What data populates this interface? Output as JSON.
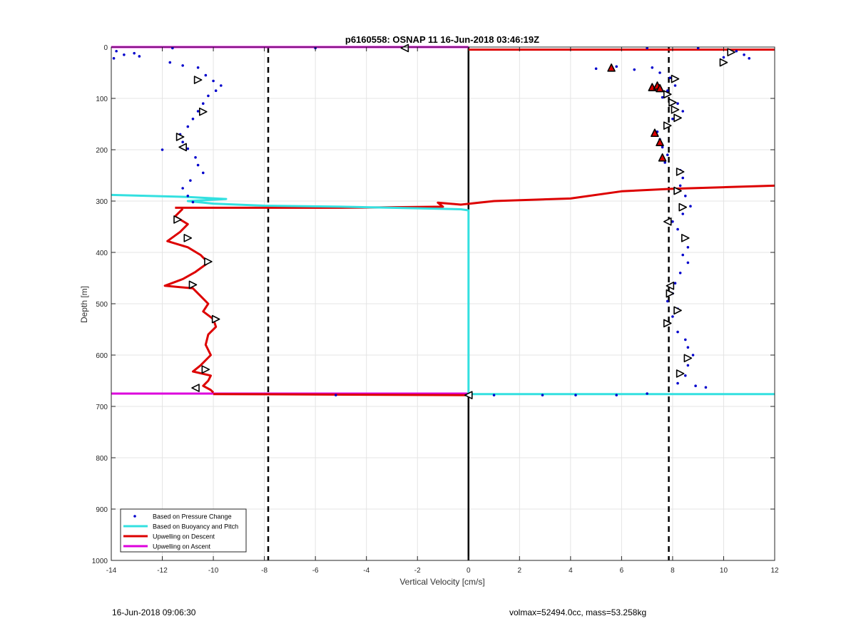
{
  "chart_data": {
    "type": "scatter",
    "title": "p6160558: OSNAP 11 16-Jun-2018 03:46:19Z",
    "xlabel": "Vertical Velocity [cm/s]",
    "ylabel": "Depth [m]",
    "xlim": [
      -14,
      12
    ],
    "ylim": [
      0,
      1000
    ],
    "y_reversed": true,
    "grid": true,
    "xticks": [
      "-14",
      "-12",
      "-10",
      "-8",
      "-6",
      "-4",
      "-2",
      "0",
      "2",
      "4",
      "6",
      "8",
      "10",
      "12"
    ],
    "yticks": [
      "0",
      "100",
      "200",
      "300",
      "400",
      "500",
      "600",
      "700",
      "800",
      "900",
      "1000"
    ],
    "legend_position": "bottom-left",
    "legend": [
      {
        "label": "Based on Pressure Change",
        "color": "#0000cc",
        "style": "marker"
      },
      {
        "label": "Based on Buoyancy and Pitch",
        "color": "#33e0e0",
        "style": "line"
      },
      {
        "label": "Upwelling on Descent",
        "color": "#dd0000",
        "style": "line"
      },
      {
        "label": "Upwelling on Ascent",
        "color": "#dd00dd",
        "style": "line"
      }
    ],
    "reference_lines": {
      "dashed_x": [
        -7.85,
        7.85
      ],
      "solid_x": [
        0
      ],
      "color": "#000000"
    },
    "series": [
      {
        "name": "Upwelling on Ascent",
        "kind": "line",
        "color": "#dd00dd",
        "points": [
          [
            -14,
            0
          ],
          [
            0,
            0
          ]
        ]
      },
      {
        "name": "Upwelling on Ascent",
        "kind": "line",
        "color": "#dd00dd",
        "points": [
          [
            -14,
            675
          ],
          [
            0,
            675
          ]
        ]
      },
      {
        "name": "Upwelling on Descent",
        "kind": "line",
        "color": "#dd0000",
        "points": [
          [
            0,
            5
          ],
          [
            12,
            5
          ]
        ]
      },
      {
        "name": "Upwelling on Descent",
        "kind": "line",
        "color": "#dd0000",
        "points": [
          [
            -11.5,
            313
          ],
          [
            -5,
            313
          ],
          [
            -1,
            311
          ],
          [
            -1.2,
            303
          ],
          [
            -0.3,
            307
          ],
          [
            1,
            300
          ],
          [
            4,
            295
          ],
          [
            6,
            281
          ],
          [
            8,
            276
          ],
          [
            10,
            273
          ],
          [
            12,
            270
          ]
        ]
      },
      {
        "name": "Upwelling on Descent",
        "kind": "line",
        "color": "#dd0000",
        "points": [
          [
            -11.2,
            315
          ],
          [
            -11.5,
            330
          ],
          [
            -11,
            345
          ],
          [
            -11.3,
            360
          ],
          [
            -11.8,
            378
          ],
          [
            -11,
            390
          ],
          [
            -10.5,
            405
          ],
          [
            -10.2,
            420
          ],
          [
            -10.7,
            438
          ],
          [
            -11.2,
            452
          ],
          [
            -11.9,
            465
          ],
          [
            -10.8,
            470
          ],
          [
            -10.5,
            485
          ],
          [
            -10.2,
            500
          ],
          [
            -10.4,
            515
          ],
          [
            -10,
            530
          ],
          [
            -9.9,
            545
          ],
          [
            -10.2,
            560
          ],
          [
            -10.3,
            580
          ],
          [
            -10.1,
            600
          ],
          [
            -10.5,
            620
          ],
          [
            -10.8,
            632
          ],
          [
            -10.1,
            640
          ],
          [
            -10.2,
            650
          ],
          [
            -10.4,
            660
          ],
          [
            -10.1,
            668
          ],
          [
            -10,
            673
          ]
        ]
      },
      {
        "name": "Upwelling on Descent",
        "kind": "line",
        "color": "#dd0000",
        "points": [
          [
            -10,
            676
          ],
          [
            0,
            678
          ]
        ]
      },
      {
        "name": "Based on Buoyancy and Pitch",
        "kind": "line",
        "color": "#33e0e0",
        "points": [
          [
            -14,
            288
          ],
          [
            -11,
            292
          ],
          [
            -9.5,
            296
          ],
          [
            -11,
            300
          ],
          [
            -10,
            305
          ],
          [
            -8,
            309
          ],
          [
            -5,
            311
          ],
          [
            -2,
            314
          ],
          [
            -0.3,
            316
          ],
          [
            0,
            318
          ],
          [
            0,
            400
          ],
          [
            0,
            500
          ],
          [
            0,
            600
          ],
          [
            0,
            676
          ],
          [
            6,
            676
          ],
          [
            12,
            676
          ]
        ]
      },
      {
        "name": "Based on Pressure Change",
        "kind": "scatter",
        "color": "#0000cc",
        "points": [
          [
            -13.8,
            8
          ],
          [
            -13.5,
            15
          ],
          [
            -13.9,
            22
          ],
          [
            -13.1,
            12
          ],
          [
            -12.9,
            18
          ],
          [
            -11.7,
            30
          ],
          [
            -11.2,
            36
          ],
          [
            -10.6,
            40
          ],
          [
            -10.3,
            55
          ],
          [
            -10.0,
            66
          ],
          [
            -9.7,
            75
          ],
          [
            -9.9,
            85
          ],
          [
            -10.2,
            95
          ],
          [
            -10.4,
            110
          ],
          [
            -10.6,
            125
          ],
          [
            -10.8,
            140
          ],
          [
            -11.0,
            155
          ],
          [
            -11.3,
            170
          ],
          [
            -11.2,
            185
          ],
          [
            -11.0,
            198
          ],
          [
            -12.0,
            200
          ],
          [
            -10.7,
            215
          ],
          [
            -10.6,
            230
          ],
          [
            -10.4,
            245
          ],
          [
            -10.9,
            260
          ],
          [
            -11.2,
            275
          ],
          [
            -11.0,
            290
          ],
          [
            -10.8,
            302
          ],
          [
            -6.0,
            2
          ],
          [
            -11.6,
            2
          ],
          [
            -5.2,
            678
          ],
          [
            1.0,
            678
          ],
          [
            2.9,
            678
          ],
          [
            4.2,
            678
          ],
          [
            5.8,
            678
          ],
          [
            7.0,
            675
          ],
          [
            7.0,
            2
          ],
          [
            9.0,
            2
          ],
          [
            10.5,
            8
          ],
          [
            10.8,
            15
          ],
          [
            11.0,
            22
          ],
          [
            10.0,
            20
          ],
          [
            5.0,
            42
          ],
          [
            5.8,
            38
          ],
          [
            6.5,
            44
          ],
          [
            7.2,
            40
          ],
          [
            7.5,
            50
          ],
          [
            7.9,
            60
          ],
          [
            8.1,
            75
          ],
          [
            7.8,
            85
          ],
          [
            7.6,
            98
          ],
          [
            8.2,
            110
          ],
          [
            8.4,
            125
          ],
          [
            8.0,
            140
          ],
          [
            7.7,
            150
          ],
          [
            7.4,
            165
          ],
          [
            7.5,
            180
          ],
          [
            7.6,
            195
          ],
          [
            7.8,
            210
          ],
          [
            7.7,
            225
          ],
          [
            8.3,
            240
          ],
          [
            8.4,
            255
          ],
          [
            8.3,
            270
          ],
          [
            8.5,
            290
          ],
          [
            8.7,
            310
          ],
          [
            8.4,
            325
          ],
          [
            8.0,
            340
          ],
          [
            8.2,
            355
          ],
          [
            8.5,
            370
          ],
          [
            8.6,
            390
          ],
          [
            8.4,
            405
          ],
          [
            8.6,
            420
          ],
          [
            8.3,
            440
          ],
          [
            8.1,
            460
          ],
          [
            8.0,
            480
          ],
          [
            7.8,
            495
          ],
          [
            8.2,
            510
          ],
          [
            8.0,
            525
          ],
          [
            7.8,
            540
          ],
          [
            8.2,
            555
          ],
          [
            8.5,
            570
          ],
          [
            8.6,
            585
          ],
          [
            8.8,
            600
          ],
          [
            8.6,
            620
          ],
          [
            8.5,
            640
          ],
          [
            8.9,
            660
          ],
          [
            9.3,
            663
          ],
          [
            8.2,
            655
          ]
        ]
      },
      {
        "name": "Right-triangle markers",
        "kind": "marker",
        "shape": "tri-right",
        "color": "#ffffff",
        "points": [
          [
            10.3,
            10
          ],
          [
            10.0,
            30
          ],
          [
            8.1,
            62
          ],
          [
            7.8,
            92
          ],
          [
            8.0,
            108
          ],
          [
            8.1,
            122
          ],
          [
            8.2,
            138
          ],
          [
            7.8,
            153
          ],
          [
            8.3,
            243
          ],
          [
            8.2,
            280
          ],
          [
            8.4,
            312
          ],
          [
            8.5,
            372
          ],
          [
            8.2,
            513
          ],
          [
            7.9,
            480
          ],
          [
            7.8,
            538
          ],
          [
            8.6,
            606
          ],
          [
            8.3,
            636
          ],
          [
            -10.6,
            64
          ],
          [
            -10.4,
            126
          ],
          [
            -11.3,
            175
          ],
          [
            -11.4,
            336
          ],
          [
            -11.0,
            372
          ],
          [
            -10.2,
            418
          ],
          [
            -10.8,
            463
          ],
          [
            -9.9,
            530
          ],
          [
            -10.3,
            628
          ]
        ]
      },
      {
        "name": "Left-triangle markers",
        "kind": "marker",
        "shape": "tri-left",
        "color": "#ffffff",
        "points": [
          [
            -2.5,
            2
          ],
          [
            -11.2,
            195
          ],
          [
            7.8,
            340
          ],
          [
            7.9,
            465
          ],
          [
            -10.7,
            664
          ],
          [
            0,
            678
          ]
        ]
      },
      {
        "name": "Red-filled triangle markers",
        "kind": "marker",
        "shape": "tri-up",
        "color": "#dd0000",
        "points": [
          [
            5.6,
            40
          ],
          [
            7.2,
            78
          ],
          [
            7.4,
            75
          ],
          [
            7.5,
            80
          ],
          [
            7.3,
            167
          ],
          [
            7.5,
            185
          ],
          [
            7.6,
            215
          ]
        ]
      }
    ]
  },
  "footer": {
    "left_text": "16-Jun-2018 09:06:30",
    "right_text": "volmax=52494.0cc, mass=53.258kg"
  }
}
